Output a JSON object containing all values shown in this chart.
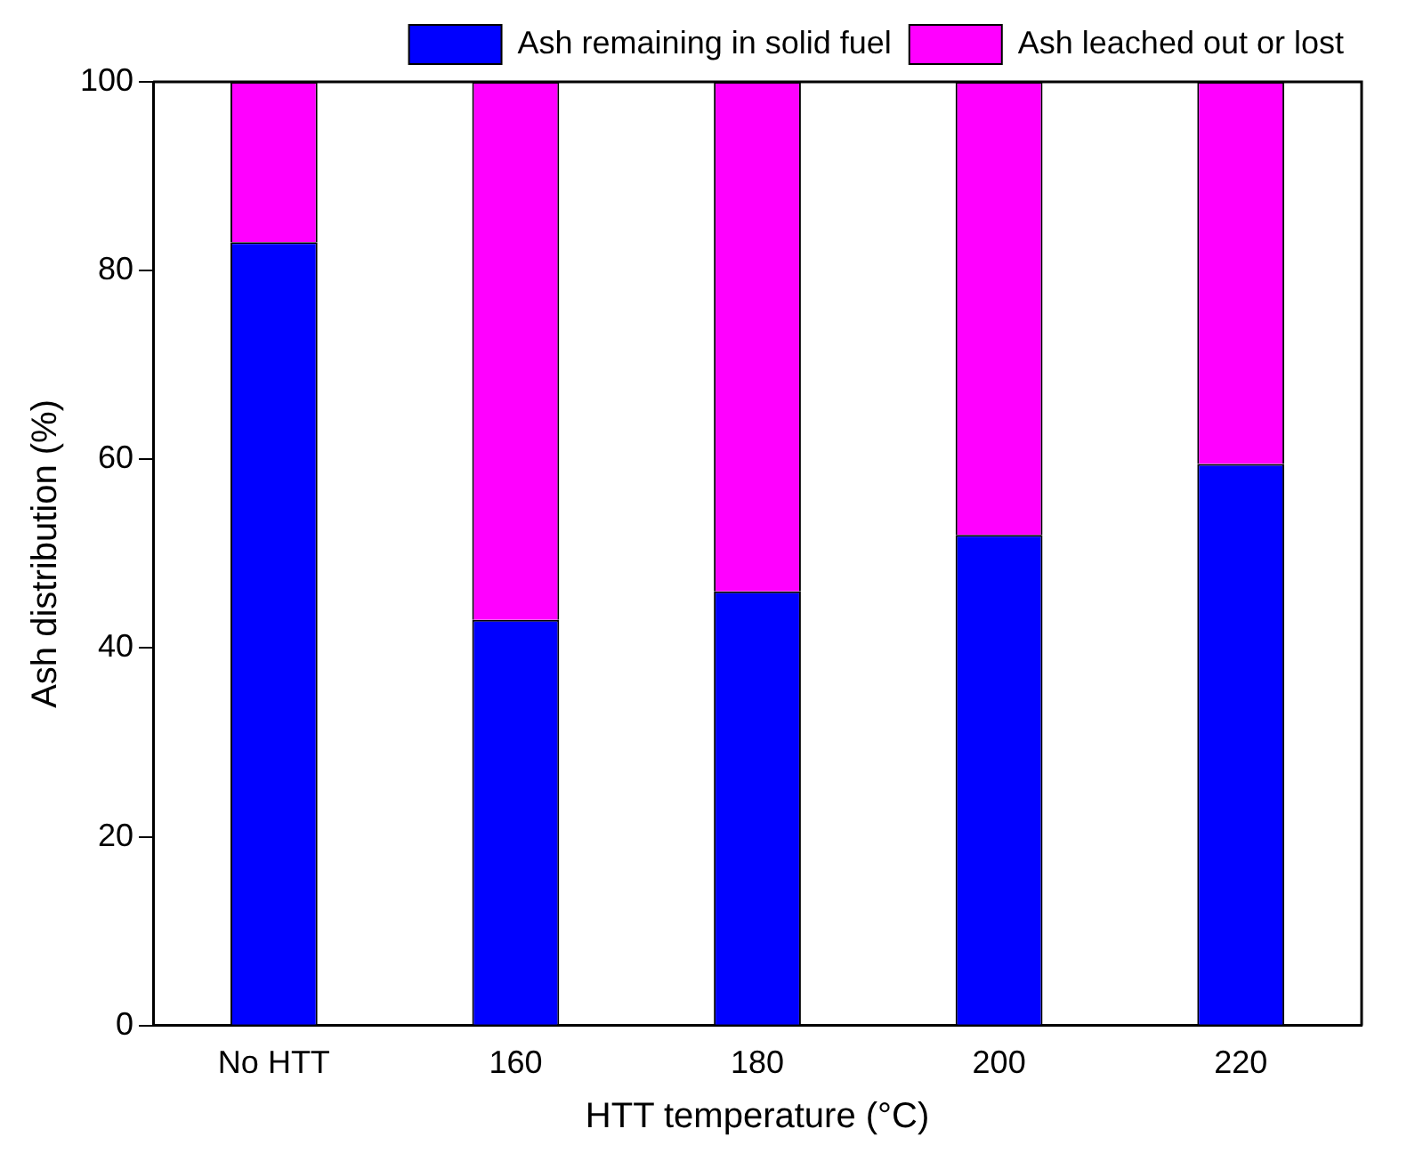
{
  "chart_data": {
    "type": "bar",
    "stacked": true,
    "xlabel": "HTT temperature (°C)",
    "ylabel": "Ash distribution (%)",
    "categories": [
      "No HTT",
      "160",
      "180",
      "200",
      "220"
    ],
    "series": [
      {
        "name": "Ash remaining in solid fuel",
        "color": "#0000ff",
        "values": [
          83,
          43,
          46,
          52,
          59.5
        ]
      },
      {
        "name": "Ash leached out or lost",
        "color": "#ff00ff",
        "values": [
          17,
          57,
          54,
          48,
          40.5
        ]
      }
    ],
    "ylim": [
      0,
      100
    ],
    "yticks": [
      0,
      20,
      40,
      60,
      80,
      100
    ],
    "legend": "top",
    "grid": false
  }
}
